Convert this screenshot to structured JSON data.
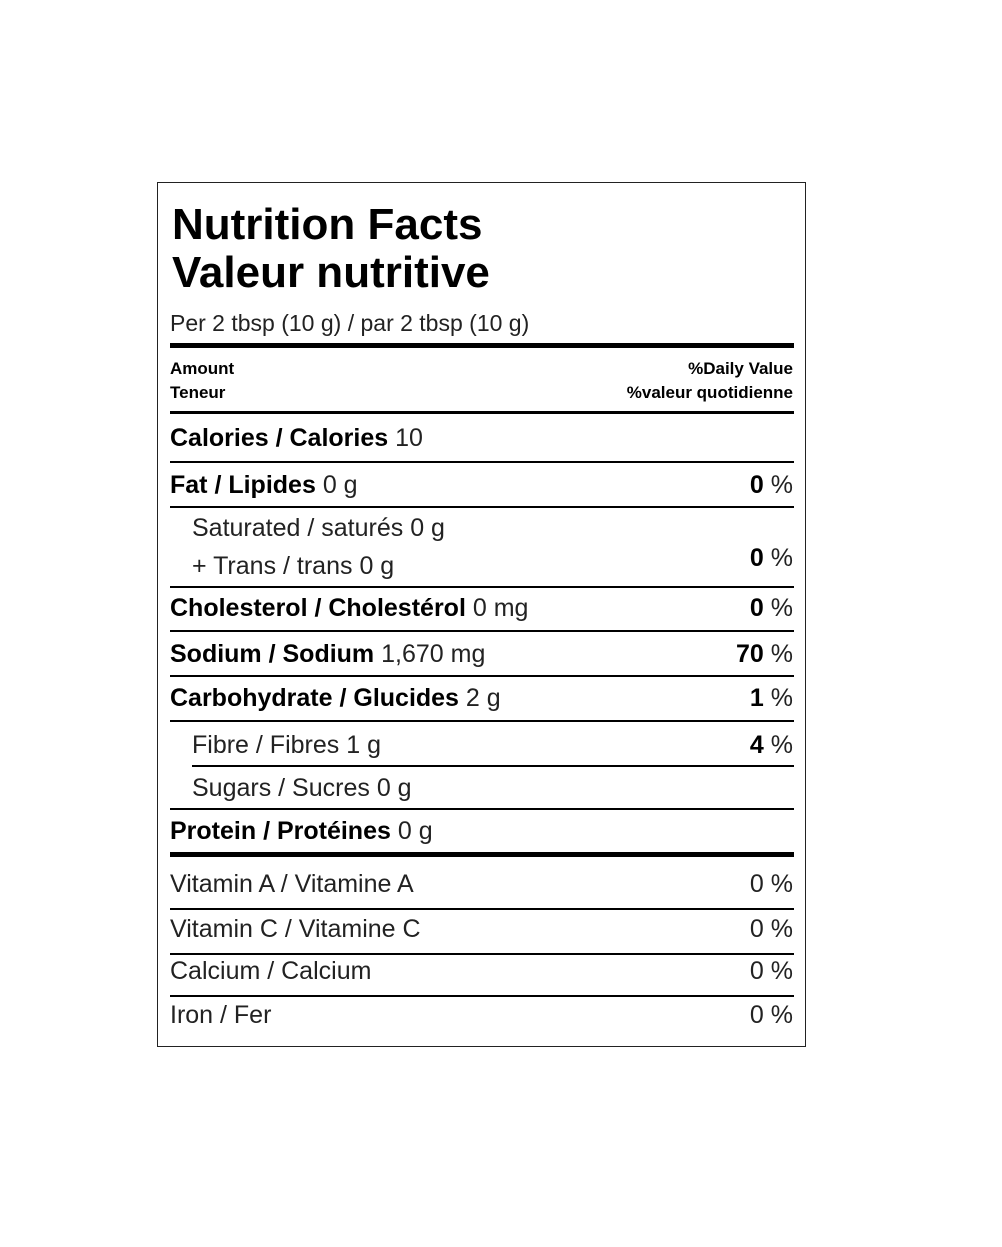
{
  "header": {
    "title_en": "Nutrition Facts",
    "title_fr": "Valeur nutritive",
    "serving": "Per 2 tbsp (10 g) / par 2 tbsp (10 g)"
  },
  "columns": {
    "amount_en": "Amount",
    "amount_fr": "Teneur",
    "dv_en": "%Daily Value",
    "dv_fr": "%valeur quotidienne"
  },
  "calories": {
    "name": "Calories / Calories",
    "amount": "10"
  },
  "rows": [
    {
      "name": "Fat / Lipides",
      "amount": "0 g",
      "dv": "0",
      "unit": "%"
    },
    {
      "name": "Saturated / saturés",
      "amount": "0 g",
      "name2": "+ Trans / trans",
      "amount2": "0 g",
      "dv": "0",
      "unit": "%"
    },
    {
      "name": "Cholesterol / Cholestérol",
      "amount": "0 mg",
      "dv": "0",
      "unit": "%"
    },
    {
      "name": "Sodium / Sodium",
      "amount": "1,670 mg",
      "dv": "70",
      "unit": "%"
    },
    {
      "name": "Carbohydrate / Glucides",
      "amount": "2 g",
      "dv": "1",
      "unit": "%"
    },
    {
      "name": "Fibre / Fibres",
      "amount": "1 g",
      "dv": "4",
      "unit": "%"
    },
    {
      "name": "Sugars / Sucres",
      "amount": "0 g"
    },
    {
      "name": "Protein / Protéines",
      "amount": "0 g"
    }
  ],
  "vitamins": [
    {
      "name": "Vitamin A / Vitamine A",
      "dv": "0",
      "unit": "%"
    },
    {
      "name": "Vitamin C / Vitamine C",
      "dv": "0",
      "unit": "%"
    },
    {
      "name": "Calcium / Calcium",
      "dv": "0",
      "unit": "%"
    },
    {
      "name": "Iron / Fer",
      "dv": "0",
      "unit": "%"
    }
  ]
}
